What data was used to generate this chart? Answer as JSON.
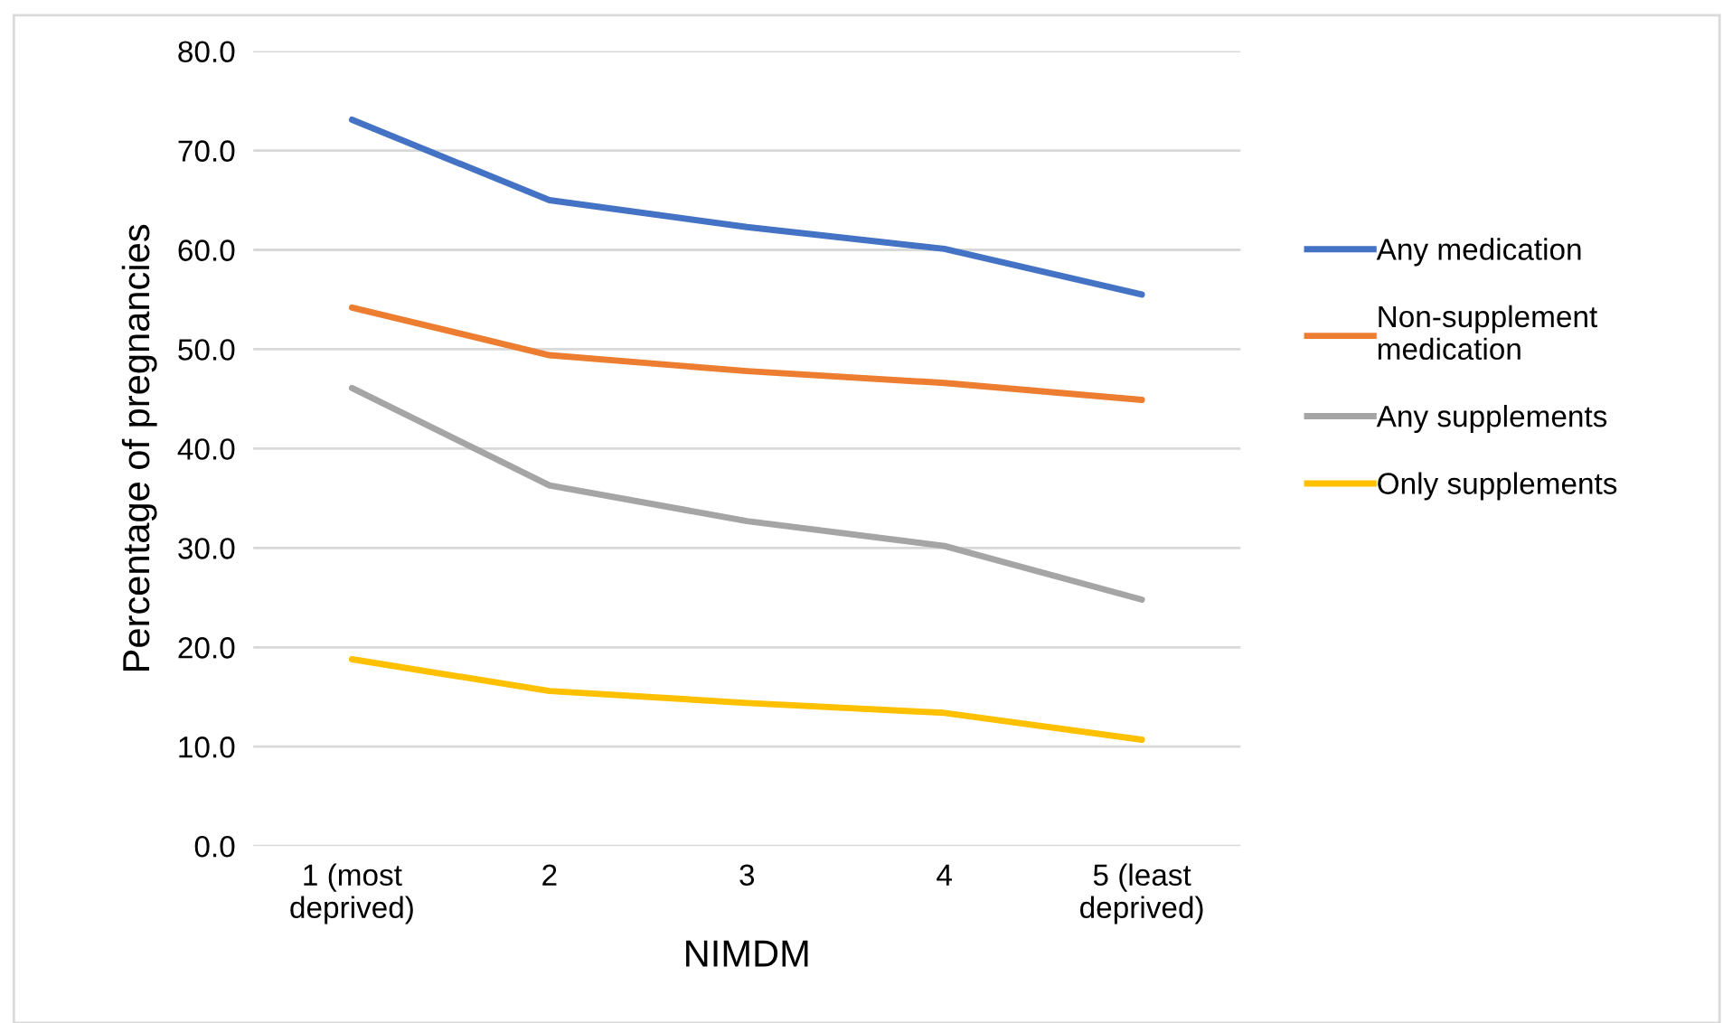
{
  "chart_data": {
    "type": "line",
    "xlabel": "NIMDM",
    "ylabel": "Percentage of pregnancies",
    "categories": [
      "1 (most\ndeprived)",
      "2",
      "3",
      "4",
      "5 (least\ndeprived)"
    ],
    "series": [
      {
        "name": "Any medication",
        "color": "#4472c4",
        "values": [
          73.1,
          65.0,
          62.3,
          60.1,
          55.5
        ]
      },
      {
        "name": "Non-supplement\nmedication",
        "color": "#ed7d31",
        "values": [
          54.2,
          49.4,
          47.8,
          46.6,
          44.9
        ]
      },
      {
        "name": "Any supplements",
        "color": "#a5a5a5",
        "values": [
          46.1,
          36.3,
          32.7,
          30.2,
          24.8
        ]
      },
      {
        "name": "Only supplements",
        "color": "#ffc000",
        "values": [
          18.8,
          15.6,
          14.4,
          13.4,
          10.7
        ]
      }
    ],
    "ylim": [
      0,
      80
    ],
    "yticks": [
      {
        "value": 0,
        "label": "0.0"
      },
      {
        "value": 10,
        "label": "10.0"
      },
      {
        "value": 20,
        "label": "20.0"
      },
      {
        "value": 30,
        "label": "30.0"
      },
      {
        "value": 40,
        "label": "40.0"
      },
      {
        "value": 50,
        "label": "50.0"
      },
      {
        "value": 60,
        "label": "60.0"
      },
      {
        "value": 70,
        "label": "70.0"
      },
      {
        "value": 80,
        "label": "80.0"
      }
    ],
    "grid": "y",
    "legend": "right",
    "marker": "none",
    "line_style": "solid"
  }
}
